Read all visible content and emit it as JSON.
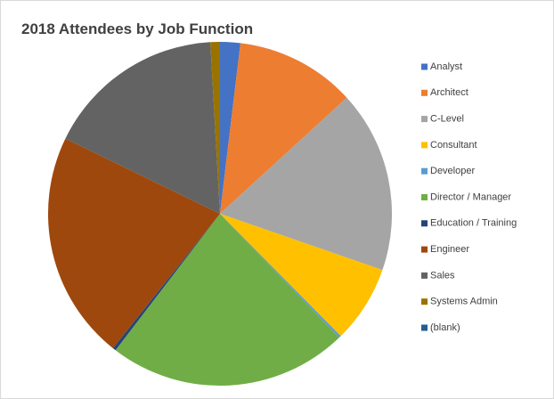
{
  "chart_data": {
    "type": "pie",
    "title": "2018 Attendees by Job Function",
    "categories": [
      "Analyst",
      "Architect",
      "C-Level",
      "Consultant",
      "Developer",
      "Director / Manager",
      "Education / Training",
      "Engineer",
      "Sales",
      "Systems Admin",
      "(blank)"
    ],
    "values": [
      1.9,
      11.3,
      17.1,
      7.3,
      0.2,
      22.6,
      0.3,
      21.5,
      16.9,
      0.9,
      0
    ],
    "colors": [
      "#4472c4",
      "#ed7d31",
      "#a5a5a5",
      "#ffc000",
      "#5b9bd5",
      "#70ad47",
      "#264478",
      "#9e480e",
      "#636363",
      "#997300",
      "#255e91"
    ],
    "legend": "right"
  }
}
